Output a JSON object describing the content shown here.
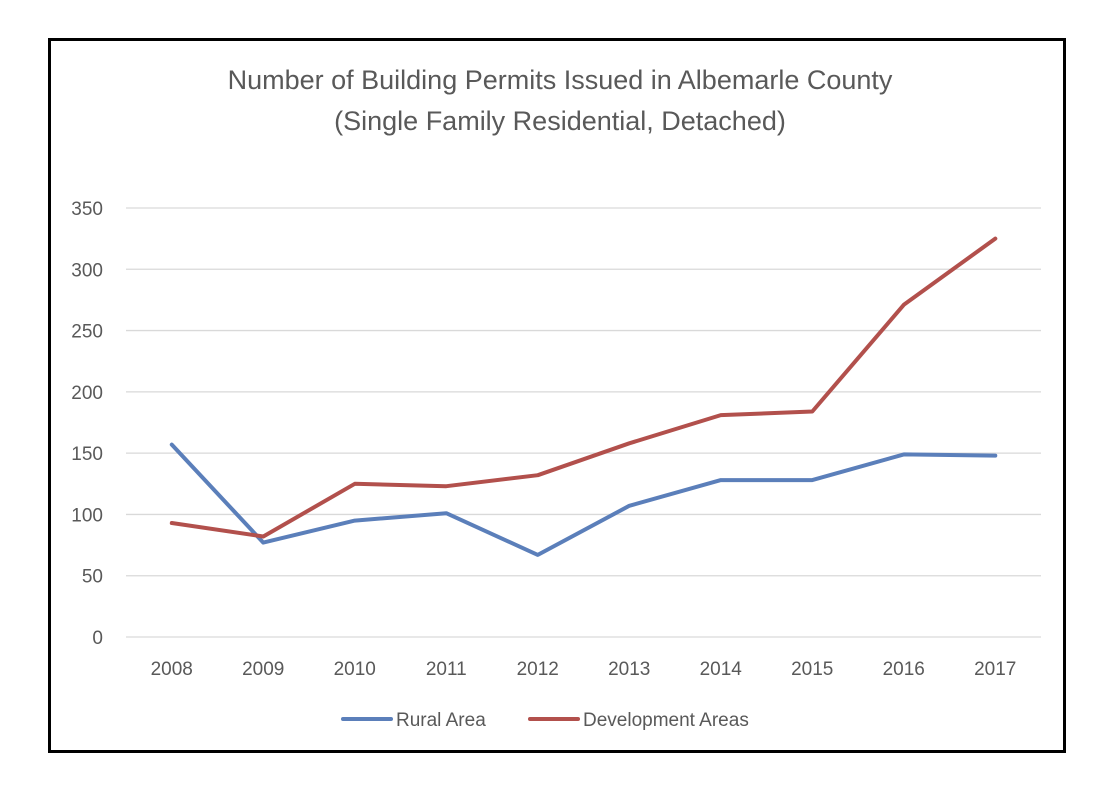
{
  "chart_data": {
    "type": "line",
    "title": "Number of Building Permits Issued in Albemarle County",
    "subtitle": "(Single Family Residential, Detached)",
    "xlabel": "",
    "ylabel": "",
    "categories": [
      "2008",
      "2009",
      "2010",
      "2011",
      "2012",
      "2013",
      "2014",
      "2015",
      "2016",
      "2017"
    ],
    "series": [
      {
        "name": "Rural Area",
        "color": "#5b7fba",
        "values": [
          157,
          77,
          95,
          101,
          67,
          107,
          128,
          128,
          149,
          148
        ]
      },
      {
        "name": "Development Areas",
        "color": "#b2504c",
        "values": [
          93,
          82,
          125,
          123,
          132,
          158,
          181,
          184,
          271,
          325
        ]
      }
    ],
    "ylim": [
      0,
      350
    ],
    "yticks": [
      0,
      50,
      100,
      150,
      200,
      250,
      300,
      350
    ],
    "grid": true,
    "legend_position": "bottom"
  }
}
